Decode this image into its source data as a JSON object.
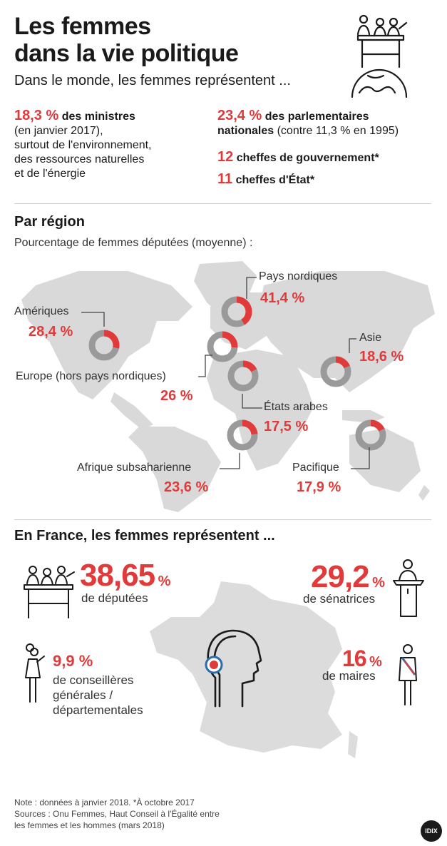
{
  "header": {
    "title_line1": "Les femmes",
    "title_line2": "dans la vie politique",
    "subtitle": "Dans le monde, les femmes représentent ..."
  },
  "world_stats": {
    "ministers": {
      "value": "18,3 %",
      "label": "des ministres",
      "line2": "(en janvier 2017),",
      "line3": "surtout de l'environnement,",
      "line4": "des ressources naturelles",
      "line5": "et de l'énergie"
    },
    "parliament": {
      "value": "23,4 %",
      "label_line1": "des parlementaires",
      "label_bold2": "nationales",
      "label_rest2": "(contre 11,3 % en 1995)"
    },
    "heads_gov": {
      "value": "12",
      "label": "cheffes de gouvernement*"
    },
    "heads_state": {
      "value": "11",
      "label": "cheffes d'État*"
    }
  },
  "region_section": {
    "title": "Par région",
    "caption": "Pourcentage de femmes députées (moyenne) :"
  },
  "chart_data": {
    "type": "donut",
    "title": "Pourcentage de femmes députées (moyenne)",
    "unit": "%",
    "categories": [
      "Pays nordiques",
      "Amériques",
      "Asie",
      "Europe (hors pays nordiques)",
      "États arabes",
      "Afrique subsaharienne",
      "Pacifique"
    ],
    "values": [
      41.4,
      28.4,
      18.6,
      26,
      17.5,
      23.6,
      17.9
    ],
    "labels": [
      "41,4 %",
      "28,4 %",
      "18,6 %",
      "26 %",
      "17,5 %",
      "23,6 %",
      "17,9 %"
    ],
    "colors": {
      "filled": "#e03a3a",
      "empty": "#9a9a9a",
      "map": "#d9d9d9"
    }
  },
  "france_section": {
    "title": "En France, les femmes représentent ...",
    "deputies": {
      "value": "38,65",
      "pct": "%",
      "label": "de députées"
    },
    "senators": {
      "value": "29,2",
      "pct": "%",
      "label": "de sénatrices"
    },
    "councillors": {
      "value": "9,9 %",
      "line1": "de conseillères",
      "line2": "générales /",
      "line3": "départementales"
    },
    "mayors": {
      "value": "16",
      "pct": "%",
      "label": "de maires"
    }
  },
  "footer": {
    "note": "Note : données à janvier 2018. *À octobre 2017",
    "sources_line1": "Sources : Onu Femmes, Haut Conseil à l'Égalité entre",
    "sources_line2": "les femmes et les hommes (mars 2018)",
    "logo": "IDIX"
  },
  "icons": {
    "header": "parliament-globe-icon",
    "deputies": "assembly-group-icon",
    "senators": "speaker-podium-icon",
    "councillors": "woman-speaking-icon",
    "mayors": "mayor-sash-icon",
    "france_center": "woman-profile-target-icon"
  }
}
